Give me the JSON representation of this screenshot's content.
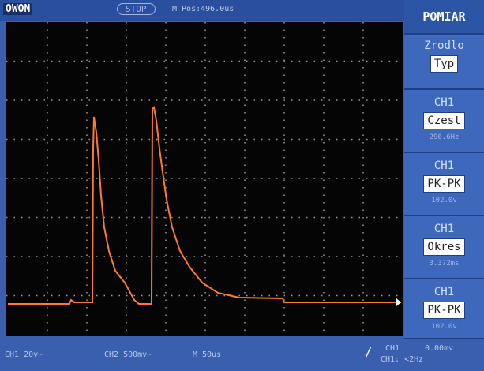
{
  "header": {
    "logo": "OWON",
    "status": "STOP",
    "position": "M Pos:496.0us"
  },
  "menu": {
    "title": "POMIAR",
    "source": "Zrodlo",
    "type_button": "Typ",
    "measurements": [
      {
        "channel": "CH1",
        "label": "Czest",
        "value": "296.6Hz"
      },
      {
        "channel": "CH1",
        "label": "PK-PK",
        "value": "102.0v"
      },
      {
        "channel": "CH1",
        "label": "Okres",
        "value": "3.372ms"
      },
      {
        "channel": "CH1",
        "label": "PK-PK",
        "value": "102.0v"
      }
    ]
  },
  "footer": {
    "ch1": "CH1 20v~",
    "ch2": "CH2 500mv~",
    "timebase": "M 50us",
    "trigger_channel": "CH1",
    "trigger_level": "0.00mv",
    "frequency": "CH1: <2Hz"
  }
}
